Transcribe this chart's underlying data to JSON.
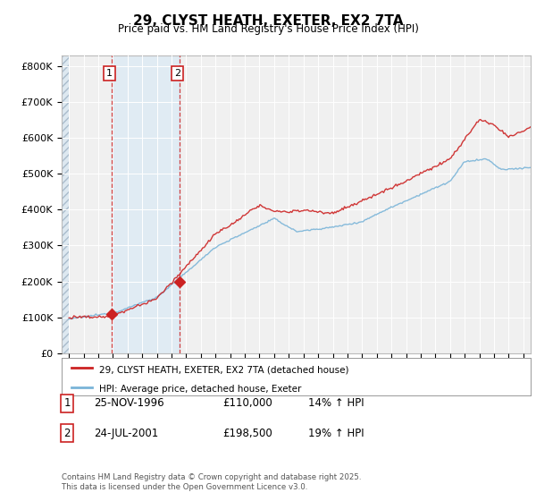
{
  "title": "29, CLYST HEATH, EXETER, EX2 7TA",
  "subtitle": "Price paid vs. HM Land Registry's House Price Index (HPI)",
  "ylabel_values": [
    "£0",
    "£100K",
    "£200K",
    "£300K",
    "£400K",
    "£500K",
    "£600K",
    "£700K",
    "£800K"
  ],
  "ylim": [
    0,
    830000
  ],
  "xlim_start": 1993.5,
  "xlim_end": 2025.5,
  "sale1_year": 1996.9,
  "sale1_price": 110000,
  "sale2_year": 2001.55,
  "sale2_price": 198500,
  "hpi_color": "#7ab4d8",
  "price_color": "#cc2222",
  "legend_line1": "29, CLYST HEATH, EXETER, EX2 7TA (detached house)",
  "legend_line2": "HPI: Average price, detached house, Exeter",
  "table_row1": [
    "1",
    "25-NOV-1996",
    "£110,000",
    "14% ↑ HPI"
  ],
  "table_row2": [
    "2",
    "24-JUL-2001",
    "£198,500",
    "19% ↑ HPI"
  ],
  "footnote": "Contains HM Land Registry data © Crown copyright and database right 2025.\nThis data is licensed under the Open Government Licence v3.0.",
  "bg_color": "#ffffff",
  "plot_bg_color": "#f0f0f0"
}
